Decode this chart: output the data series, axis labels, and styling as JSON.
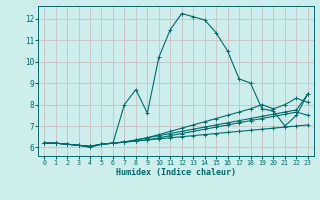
{
  "xlabel": "Humidex (Indice chaleur)",
  "bg_color": "#cdeeed",
  "grid_color": "#c8b8b8",
  "line_color": "#006b6b",
  "xlim": [
    -0.5,
    23.5
  ],
  "ylim": [
    5.6,
    12.6
  ],
  "xticks": [
    0,
    1,
    2,
    3,
    4,
    5,
    6,
    7,
    8,
    9,
    10,
    11,
    12,
    13,
    14,
    15,
    16,
    17,
    18,
    19,
    20,
    21,
    22,
    23
  ],
  "yticks": [
    6,
    7,
    8,
    9,
    10,
    11,
    12
  ],
  "lines": [
    {
      "x": [
        0,
        1,
        2,
        3,
        4,
        5,
        6,
        7,
        8,
        9,
        10,
        11,
        12,
        13,
        14,
        15,
        16,
        17,
        18,
        19,
        20,
        21,
        22,
        23
      ],
      "y": [
        6.2,
        6.2,
        6.15,
        6.1,
        6.0,
        6.15,
        6.2,
        8.0,
        8.7,
        7.6,
        10.2,
        11.5,
        12.25,
        12.1,
        11.95,
        11.35,
        10.5,
        9.2,
        9.0,
        7.8,
        7.7,
        7.0,
        7.5,
        8.5
      ]
    },
    {
      "x": [
        0,
        1,
        2,
        3,
        4,
        5,
        6,
        7,
        8,
        9,
        10,
        11,
        12,
        13,
        14,
        15,
        16,
        17,
        18,
        19,
        20,
        21,
        22,
        23
      ],
      "y": [
        6.2,
        6.2,
        6.15,
        6.1,
        6.05,
        6.15,
        6.2,
        6.25,
        6.3,
        6.35,
        6.45,
        6.55,
        6.65,
        6.75,
        6.85,
        6.95,
        7.05,
        7.15,
        7.25,
        7.35,
        7.45,
        7.55,
        7.65,
        7.5
      ]
    },
    {
      "x": [
        0,
        1,
        2,
        3,
        4,
        5,
        6,
        7,
        8,
        9,
        10,
        11,
        12,
        13,
        14,
        15,
        16,
        17,
        18,
        19,
        20,
        21,
        22,
        23
      ],
      "y": [
        6.2,
        6.2,
        6.15,
        6.1,
        6.05,
        6.15,
        6.2,
        6.25,
        6.35,
        6.45,
        6.55,
        6.65,
        6.75,
        6.85,
        6.95,
        7.05,
        7.15,
        7.25,
        7.35,
        7.45,
        7.55,
        7.65,
        7.75,
        8.5
      ]
    },
    {
      "x": [
        0,
        1,
        2,
        3,
        4,
        5,
        6,
        7,
        8,
        9,
        10,
        11,
        12,
        13,
        14,
        15,
        16,
        17,
        18,
        19,
        20,
        21,
        22,
        23
      ],
      "y": [
        6.2,
        6.2,
        6.15,
        6.1,
        6.05,
        6.15,
        6.2,
        6.25,
        6.3,
        6.35,
        6.4,
        6.45,
        6.5,
        6.55,
        6.6,
        6.65,
        6.7,
        6.75,
        6.8,
        6.85,
        6.9,
        6.95,
        7.0,
        7.05
      ]
    },
    {
      "x": [
        0,
        1,
        2,
        3,
        4,
        5,
        6,
        7,
        8,
        9,
        10,
        11,
        12,
        13,
        14,
        15,
        16,
        17,
        18,
        19,
        20,
        21,
        22,
        23
      ],
      "y": [
        6.2,
        6.2,
        6.15,
        6.1,
        6.05,
        6.15,
        6.2,
        6.25,
        6.35,
        6.45,
        6.6,
        6.75,
        6.9,
        7.05,
        7.2,
        7.35,
        7.5,
        7.65,
        7.8,
        8.0,
        7.8,
        8.0,
        8.3,
        8.1
      ]
    }
  ]
}
